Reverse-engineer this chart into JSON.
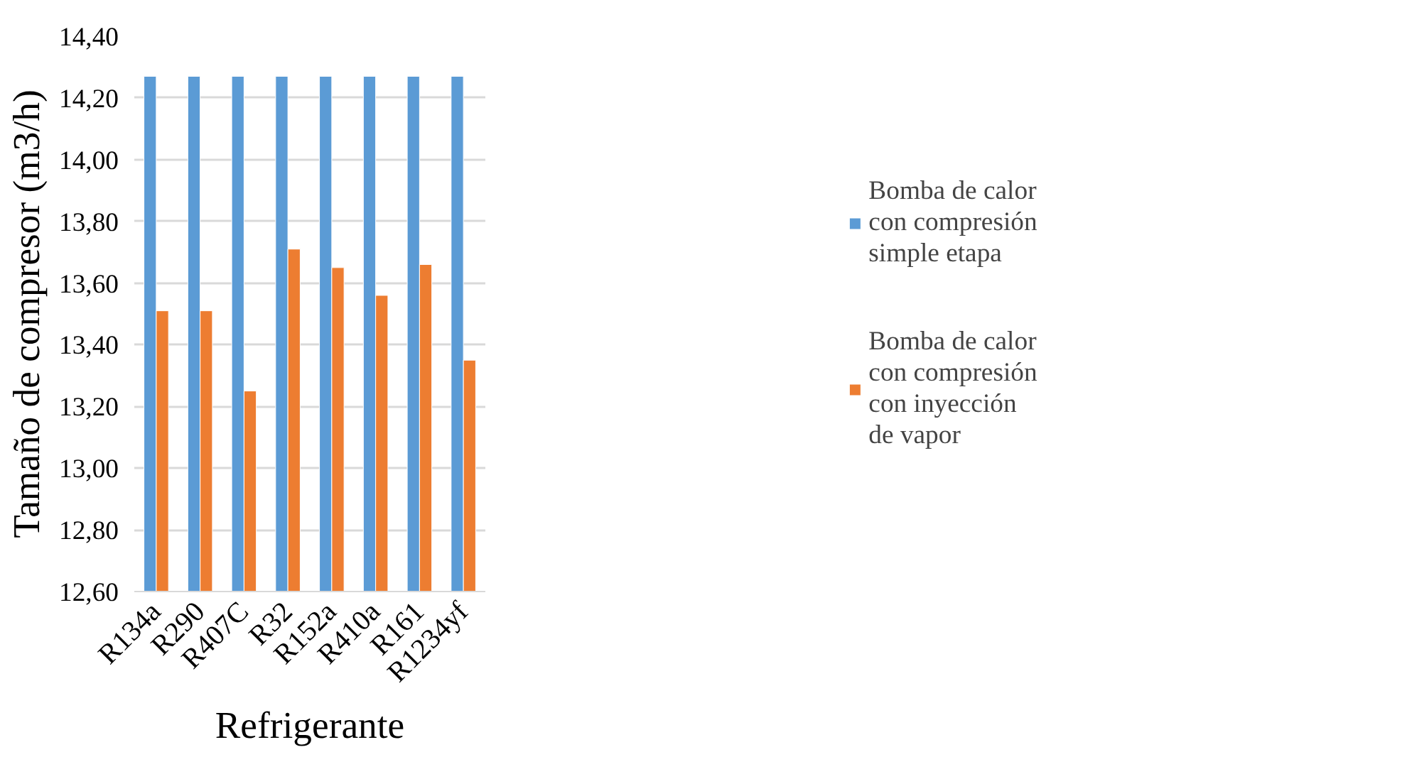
{
  "chart_data": {
    "type": "bar",
    "xlabel": "Refrigerante",
    "ylabel": "Tamaño de compresor (m3/h)",
    "categories": [
      "R134a",
      "R290",
      "R407C",
      "R32",
      "R152a",
      "R410a",
      "R161",
      "R1234yf"
    ],
    "series": [
      {
        "name": "Bomba de calor con compresión simple etapa",
        "color": "#5b9bd5",
        "values": [
          14.27,
          14.27,
          14.27,
          14.27,
          14.27,
          14.27,
          14.27,
          14.27
        ]
      },
      {
        "name": "Bomba de calor con compresión con inyección de vapor",
        "color": "#ed7d31",
        "values": [
          13.51,
          13.51,
          13.25,
          13.71,
          13.65,
          13.56,
          13.66,
          13.35
        ]
      }
    ],
    "ylim": [
      12.6,
      14.4
    ],
    "yticks": [
      {
        "value": 12.6,
        "label": "12,60"
      },
      {
        "value": 12.8,
        "label": "12,80"
      },
      {
        "value": 13.0,
        "label": "13,00"
      },
      {
        "value": 13.2,
        "label": "13,20"
      },
      {
        "value": 13.4,
        "label": "13,40"
      },
      {
        "value": 13.6,
        "label": "13,60"
      },
      {
        "value": 13.8,
        "label": "13,80"
      },
      {
        "value": 14.0,
        "label": "14,00"
      },
      {
        "value": 14.2,
        "label": "14,20"
      },
      {
        "value": 14.4,
        "label": "14,40"
      }
    ],
    "grid": "y",
    "legend": "right"
  }
}
